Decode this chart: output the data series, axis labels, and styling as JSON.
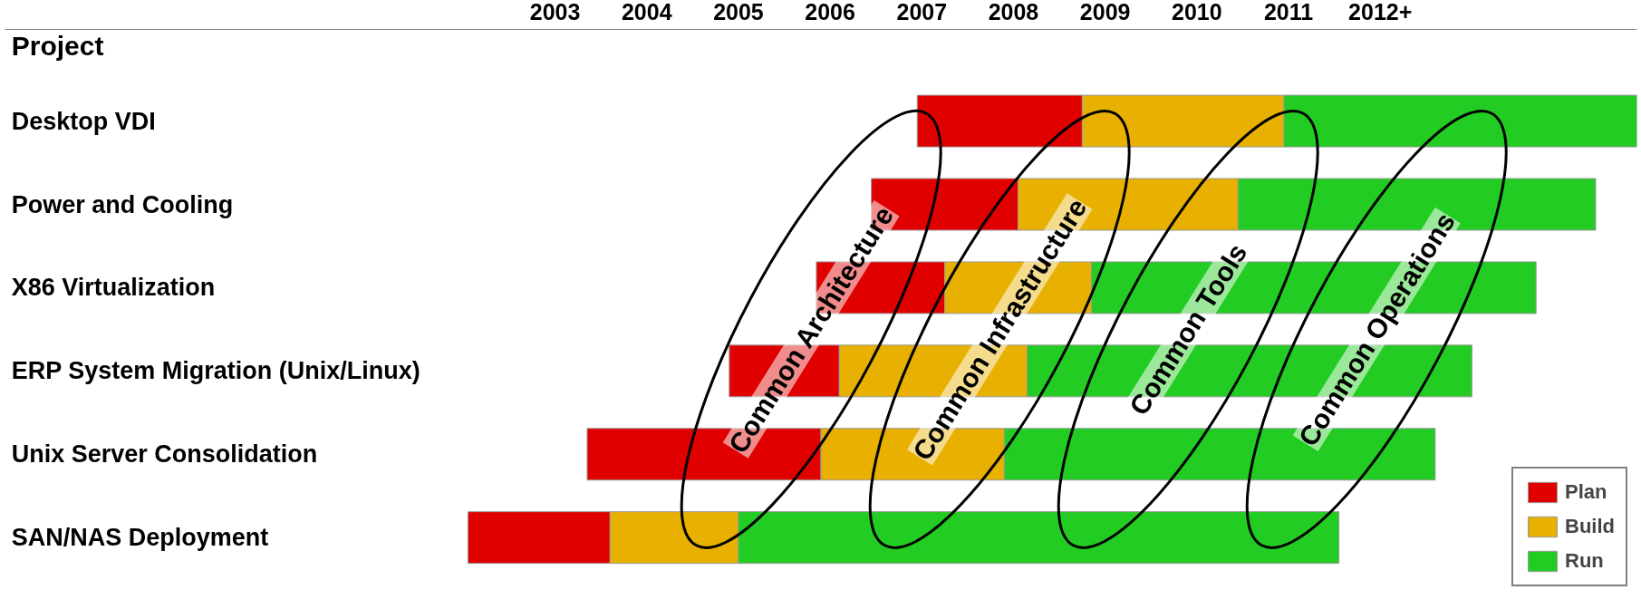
{
  "chart_data": {
    "type": "bar",
    "orientation": "horizontal",
    "ylabel": "Project",
    "categories": [
      "Desktop VDI",
      "Power and Cooling",
      "X86 Virtualization",
      "ERP System Migration (Unix/Linux)",
      "Unix Server Consolidation",
      "SAN/NAS Deployment"
    ],
    "series": [
      {
        "name": "Plan",
        "color": "#e00000",
        "base": [
          2006.95,
          2006.45,
          2005.85,
          2004.9,
          2003.35,
          2002.05
        ],
        "values": [
          1.8,
          1.6,
          1.4,
          1.2,
          2.55,
          1.55
        ]
      },
      {
        "name": "Build",
        "color": "#e8b000",
        "base": [
          2008.75,
          2008.05,
          2007.25,
          2006.1,
          2005.9,
          2003.6
        ],
        "values": [
          2.2,
          2.4,
          1.6,
          2.05,
          2.0,
          1.4
        ]
      },
      {
        "name": "Run",
        "color": "#22cc22",
        "base": [
          2010.95,
          2010.45,
          2008.85,
          2008.15,
          2007.9,
          2005.0
        ],
        "values": [
          3.85,
          3.9,
          4.85,
          4.85,
          4.7,
          6.55
        ]
      }
    ],
    "xlim": [
      1997.0,
      2014.8
    ],
    "xticks": [
      2003,
      2004,
      2005,
      2006,
      2007,
      2008,
      2009,
      2010,
      2011,
      {
        "value": 2012,
        "label": "2012+"
      }
    ],
    "annotations": [
      "Common Architecture",
      "Common Infrastructure",
      "Common Tools",
      "Common Operations"
    ],
    "grid": false,
    "legend": "bottom right"
  }
}
